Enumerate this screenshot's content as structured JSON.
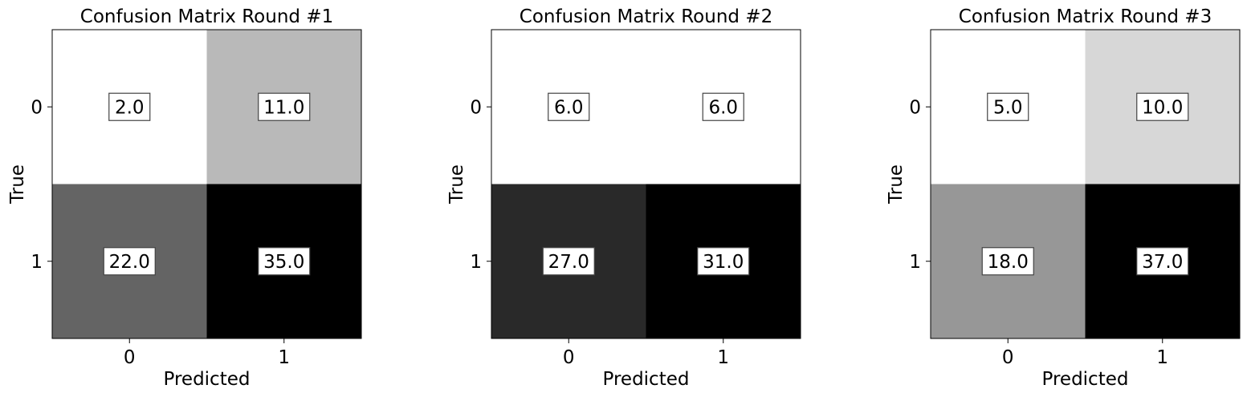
{
  "chart_data": [
    {
      "type": "heatmap",
      "title": "Confusion Matrix Round #1",
      "xlabel": "Predicted",
      "ylabel": "True",
      "x_ticks": [
        "0",
        "1"
      ],
      "y_ticks": [
        "0",
        "1"
      ],
      "colormap": "grayscale (white = low, black = high)",
      "values": [
        [
          2.0,
          11.0
        ],
        [
          22.0,
          35.0
        ]
      ],
      "value_labels": [
        [
          "2.0",
          "11.0"
        ],
        [
          "22.0",
          "35.0"
        ]
      ]
    },
    {
      "type": "heatmap",
      "title": "Confusion Matrix Round #2",
      "xlabel": "Predicted",
      "ylabel": "True",
      "x_ticks": [
        "0",
        "1"
      ],
      "y_ticks": [
        "0",
        "1"
      ],
      "colormap": "grayscale (white = low, black = high)",
      "values": [
        [
          6.0,
          6.0
        ],
        [
          27.0,
          31.0
        ]
      ],
      "value_labels": [
        [
          "6.0",
          "6.0"
        ],
        [
          "27.0",
          "31.0"
        ]
      ]
    },
    {
      "type": "heatmap",
      "title": "Confusion Matrix Round #3",
      "xlabel": "Predicted",
      "ylabel": "True",
      "x_ticks": [
        "0",
        "1"
      ],
      "y_ticks": [
        "0",
        "1"
      ],
      "colormap": "grayscale (white = low, black = high)",
      "values": [
        [
          5.0,
          10.0
        ],
        [
          18.0,
          37.0
        ]
      ],
      "value_labels": [
        [
          "5.0",
          "10.0"
        ],
        [
          "18.0",
          "37.0"
        ]
      ]
    }
  ]
}
